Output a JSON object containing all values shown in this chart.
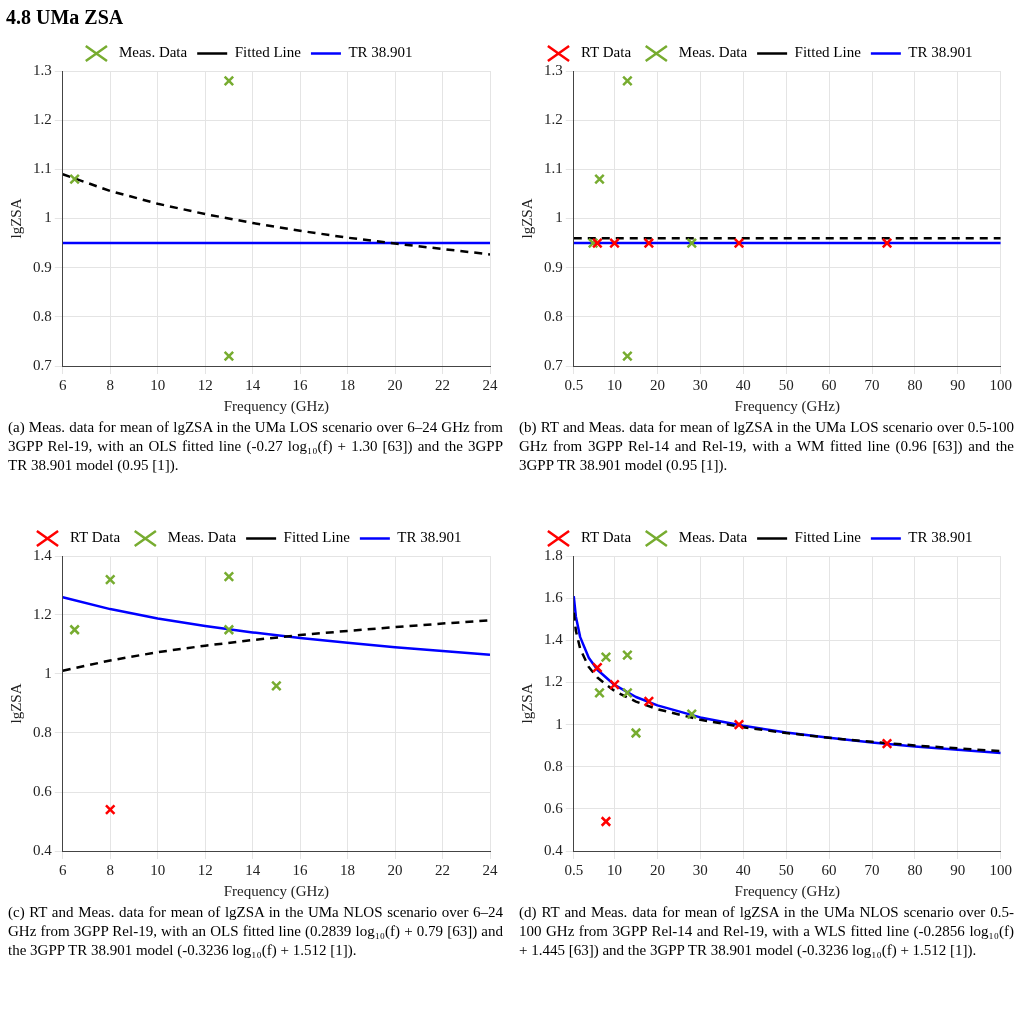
{
  "chart_data": [
    {
      "type": "scatter",
      "title": "4.8 UMa ZSA",
      "xlabel": "Frequency (GHz)",
      "ylabel": "lgZSA",
      "xlim": [
        6,
        24
      ],
      "xticks": [
        6,
        8,
        10,
        12,
        14,
        16,
        18,
        20,
        22,
        24
      ],
      "ylim": [
        0.7,
        1.3
      ],
      "yticks": [
        0.7,
        0.8,
        0.9,
        1,
        1.1,
        1.2,
        1.3
      ],
      "grid": true,
      "legend": "top",
      "series": [
        {
          "name": "Meas. Data",
          "type": "scatter",
          "color": "#77ac30",
          "marker": "cross",
          "x": [
            6.5,
            13,
            13
          ],
          "values": [
            1.08,
            1.28,
            0.72
          ]
        },
        {
          "name": "Fitted Line",
          "type": "line",
          "color": "#000000",
          "line_style": "dashed",
          "marker": "none",
          "x": [
            6,
            8,
            10,
            12,
            14,
            16,
            18,
            20,
            22,
            24
          ],
          "values": [
            1.09,
            1.056,
            1.03,
            1.009,
            0.991,
            0.975,
            0.961,
            0.949,
            0.938,
            0.927
          ]
        },
        {
          "name": "TR 38.901",
          "type": "line",
          "color": "#0000ff",
          "line_style": "solid",
          "marker": "none",
          "x": [
            6,
            24
          ],
          "values": [
            0.95,
            0.95
          ]
        }
      ],
      "annotations": [
        "(a) Meas. data for mean of lgZSA in the UMa LOS scenario over 6–24 GHz from 3GPP Rel-19, with an OLS fitted line (-0.27 log₁₀(f) + 1.30  [63]) and the 3GPP TR 38.901 model (0.95 [1])."
      ]
    },
    {
      "type": "scatter",
      "xlabel": "Frequency (GHz)",
      "ylabel": "lgZSA",
      "xlim": [
        0.5,
        100
      ],
      "xticks": [
        0.5,
        10,
        20,
        30,
        40,
        50,
        60,
        70,
        80,
        90,
        100
      ],
      "ylim": [
        0.7,
        1.3
      ],
      "yticks": [
        0.7,
        0.8,
        0.9,
        1,
        1.1,
        1.2,
        1.3
      ],
      "grid": true,
      "legend": "top",
      "series": [
        {
          "name": "RT Data",
          "type": "scatter",
          "color": "#ff0000",
          "marker": "cross",
          "x": [
            6,
            10,
            18,
            39,
            73.5
          ],
          "values": [
            0.95,
            0.95,
            0.95,
            0.95,
            0.95
          ]
        },
        {
          "name": "Meas. Data",
          "type": "scatter",
          "color": "#77ac30",
          "marker": "cross",
          "x": [
            5,
            6.5,
            13,
            13,
            28
          ],
          "values": [
            0.95,
            1.08,
            1.28,
            0.72,
            0.95
          ]
        },
        {
          "name": "Fitted Line",
          "type": "line",
          "color": "#000000",
          "line_style": "dashed",
          "marker": "none",
          "x": [
            0.5,
            100
          ],
          "values": [
            0.96,
            0.96
          ]
        },
        {
          "name": "TR 38.901",
          "type": "line",
          "color": "#0000ff",
          "line_style": "solid",
          "marker": "none",
          "x": [
            0.5,
            100
          ],
          "values": [
            0.95,
            0.95
          ]
        }
      ],
      "annotations": [
        "(b) RT and Meas. data for mean of lgZSA in the UMa LOS scenario over 0.5-100 GHz from 3GPP Rel-14 and Rel-19, with a WM fitted line (0.96 [63]) and the 3GPP TR 38.901 model (0.95 [1])."
      ]
    },
    {
      "type": "scatter",
      "xlabel": "Frequency (GHz)",
      "ylabel": "lgZSA",
      "xlim": [
        6,
        24
      ],
      "xticks": [
        6,
        8,
        10,
        12,
        14,
        16,
        18,
        20,
        22,
        24
      ],
      "ylim": [
        0.4,
        1.4
      ],
      "yticks": [
        0.4,
        0.6,
        0.8,
        1,
        1.2,
        1.4
      ],
      "grid": true,
      "legend": "top",
      "series": [
        {
          "name": "RT Data",
          "type": "scatter",
          "color": "#ff0000",
          "marker": "cross",
          "x": [
            8
          ],
          "values": [
            0.54
          ]
        },
        {
          "name": "Meas. Data",
          "type": "scatter",
          "color": "#77ac30",
          "marker": "cross",
          "x": [
            6.5,
            8,
            13,
            13,
            15
          ],
          "values": [
            1.15,
            1.32,
            1.33,
            1.15,
            0.96
          ]
        },
        {
          "name": "Fitted Line",
          "type": "line",
          "color": "#000000",
          "line_style": "dashed",
          "marker": "none",
          "x": [
            6,
            8,
            10,
            12,
            14,
            16,
            18,
            20,
            22,
            24
          ],
          "values": [
            1.011,
            1.046,
            1.074,
            1.096,
            1.115,
            1.132,
            1.146,
            1.159,
            1.171,
            1.182
          ]
        },
        {
          "name": "TR 38.901",
          "type": "line",
          "color": "#0000ff",
          "line_style": "solid",
          "marker": "none",
          "x": [
            6,
            8,
            10,
            12,
            14,
            16,
            18,
            20,
            22,
            24
          ],
          "values": [
            1.26,
            1.22,
            1.188,
            1.163,
            1.141,
            1.122,
            1.106,
            1.091,
            1.078,
            1.065
          ]
        }
      ],
      "annotations": [
        "(c) RT and Meas. data for mean of lgZSA in the UMa NLOS scenario over 6–24 GHz from 3GPP Rel-19, with an OLS fitted line (0.2839 log₁₀(f) + 0.79  [63]) and the 3GPP TR 38.901 model (-0.3236 log₁₀(f) + 1.512 [1])."
      ]
    },
    {
      "type": "scatter",
      "xlabel": "Frequency (GHz)",
      "ylabel": "lgZSA",
      "xlim": [
        0.5,
        100
      ],
      "xticks": [
        0.5,
        10,
        20,
        30,
        40,
        50,
        60,
        70,
        80,
        90,
        100
      ],
      "ylim": [
        0.4,
        1.8
      ],
      "yticks": [
        0.4,
        0.6,
        0.8,
        1,
        1.2,
        1.4,
        1.6,
        1.8
      ],
      "grid": true,
      "legend": "top",
      "series": [
        {
          "name": "RT Data",
          "type": "scatter",
          "color": "#ff0000",
          "marker": "cross",
          "x": [
            6,
            8,
            10,
            18,
            39,
            73.5
          ],
          "values": [
            1.27,
            0.54,
            1.19,
            1.11,
            1.0,
            0.91
          ]
        },
        {
          "name": "Meas. Data",
          "type": "scatter",
          "color": "#77ac30",
          "marker": "cross",
          "x": [
            6.5,
            8,
            13,
            13,
            15,
            28
          ],
          "values": [
            1.15,
            1.32,
            1.33,
            1.15,
            0.96,
            1.05
          ]
        },
        {
          "name": "Fitted Line",
          "type": "line",
          "color": "#000000",
          "line_style": "dashed",
          "marker": "none",
          "x": [
            0.5,
            1,
            2,
            4,
            6,
            10,
            15,
            20,
            30,
            40,
            50,
            60,
            70,
            80,
            90,
            100
          ],
          "values": [
            1.531,
            1.445,
            1.359,
            1.273,
            1.223,
            1.159,
            1.109,
            1.073,
            1.023,
            0.987,
            0.96,
            0.937,
            0.918,
            0.901,
            0.887,
            0.874
          ]
        },
        {
          "name": "TR 38.901",
          "type": "line",
          "color": "#0000ff",
          "line_style": "solid",
          "marker": "none",
          "x": [
            0.5,
            1,
            2,
            4,
            6,
            10,
            15,
            20,
            30,
            40,
            50,
            60,
            70,
            80,
            90,
            100
          ],
          "values": [
            1.609,
            1.512,
            1.415,
            1.317,
            1.26,
            1.188,
            1.131,
            1.091,
            1.034,
            0.994,
            0.962,
            0.937,
            0.915,
            0.896,
            0.88,
            0.865
          ]
        }
      ],
      "annotations": [
        "(d) RT and Meas. data for mean of lgZSA in the UMa NLOS scenario over 0.5-100 GHz from 3GPP Rel-14 and Rel-19, with a WLS fitted line (-0.2856 log₁₀(f) + 1.445 [63]) and the 3GPP TR 38.901 model (-0.3236 log₁₀(f) + 1.512 [1])."
      ]
    }
  ]
}
